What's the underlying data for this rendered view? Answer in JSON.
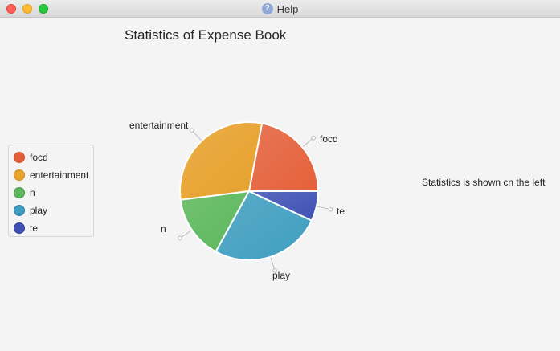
{
  "window": {
    "title": "Help",
    "help_icon_glyph": "?"
  },
  "chart_title": "Statistics of Expense Book",
  "side_text": "Statistics is shown cn the left",
  "legend": {
    "items": [
      {
        "label": "focd",
        "color": "#e5603a"
      },
      {
        "label": "entertainment",
        "color": "#e8a12b"
      },
      {
        "label": "n",
        "color": "#5cb85c"
      },
      {
        "label": "play",
        "color": "#3f9ec0"
      },
      {
        "label": "te",
        "color": "#3f51b5"
      }
    ]
  },
  "chart_data": {
    "type": "pie",
    "title": "Statistics of Expense Book",
    "series": [
      {
        "name": "focd",
        "value": 22
      },
      {
        "name": "entertainment",
        "value": 30
      },
      {
        "name": "n",
        "value": 15
      },
      {
        "name": "play",
        "value": 26
      },
      {
        "name": "te",
        "value": 7
      }
    ],
    "labels": [
      "focd",
      "entertainment",
      "n",
      "play",
      "te"
    ],
    "colors": [
      "#e5603a",
      "#e8a12b",
      "#5cb85c",
      "#3f9ec0",
      "#3f51b5"
    ],
    "legend_position": "left",
    "start_angle_deg": 0,
    "direction": "counterclockwise"
  }
}
